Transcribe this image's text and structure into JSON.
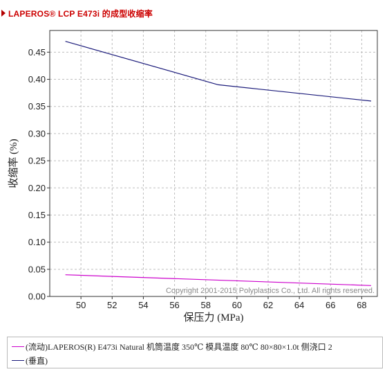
{
  "header": {
    "title": "LAPEROS® LCP E473i 的成型收缩率"
  },
  "chart_data": {
    "type": "line",
    "xlabel": "保压力 (MPa)",
    "ylabel": "收缩率 (%)",
    "xlim": [
      48,
      69
    ],
    "ylim": [
      0,
      0.49
    ],
    "xticks": [
      50,
      52,
      54,
      56,
      58,
      60,
      62,
      64,
      66,
      68
    ],
    "yticks": [
      0.0,
      0.05,
      0.1,
      0.15,
      0.2,
      0.25,
      0.3,
      0.35,
      0.4,
      0.45
    ],
    "grid": true,
    "legend_position": "bottom",
    "series": [
      {
        "name": "(流动)LAPEROS(R) E473i Natural 机筒温度 350℃ 模具温度 80℃ 80×80×1.0t 侧浇口 2",
        "color": "#cc00cc",
        "x": [
          49,
          68.6
        ],
        "y": [
          0.04,
          0.02
        ]
      },
      {
        "name": "(垂直)",
        "color": "#1a1a7a",
        "x": [
          49,
          58.8,
          68.6
        ],
        "y": [
          0.47,
          0.39,
          0.36
        ]
      }
    ],
    "annotation": "Copyright 2001-2015 Polyplastics Co., Ltd. All rights reserved."
  }
}
